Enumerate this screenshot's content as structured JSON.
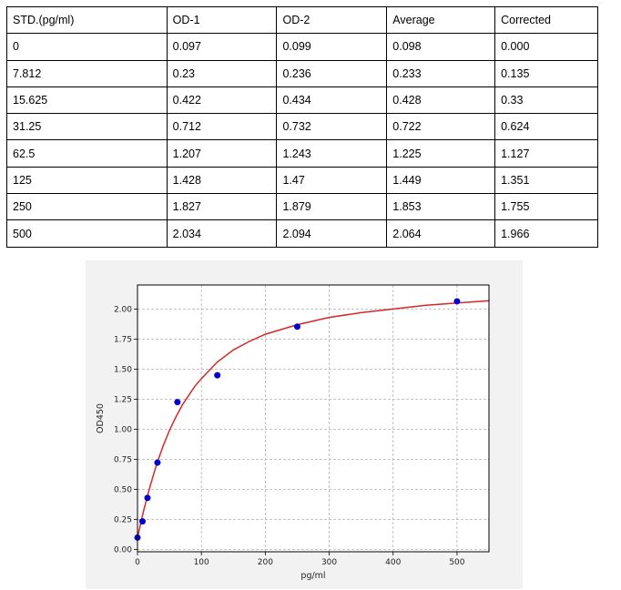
{
  "table": {
    "headers": [
      "STD.(pg/ml)",
      "OD-1",
      "OD-2",
      "Average",
      "Corrected"
    ],
    "rows": [
      [
        "0",
        "0.097",
        "0.099",
        "0.098",
        "0.000"
      ],
      [
        "7.812",
        "0.23",
        "0.236",
        "0.233",
        "0.135"
      ],
      [
        "15.625",
        "0.422",
        "0.434",
        "0.428",
        "0.33"
      ],
      [
        "31.25",
        "0.712",
        "0.732",
        "0.722",
        "0.624"
      ],
      [
        "62.5",
        "1.207",
        "1.243",
        "1.225",
        "1.127"
      ],
      [
        "125",
        "1.428",
        "1.47",
        "1.449",
        "1.351"
      ],
      [
        "250",
        "1.827",
        "1.879",
        "1.853",
        "1.755"
      ],
      [
        "500",
        "2.034",
        "2.094",
        "2.064",
        "1.966"
      ]
    ]
  },
  "chart_data": {
    "type": "scatter",
    "xlabel": "pg/ml",
    "ylabel": "OD450",
    "xlim": [
      0,
      550
    ],
    "ylim": [
      -0.02,
      2.2
    ],
    "xticks": [
      0,
      100,
      200,
      300,
      400,
      500
    ],
    "xtick_labels": [
      "0",
      "100",
      "200",
      "300",
      "400",
      "500"
    ],
    "yticks": [
      0.0,
      0.25,
      0.5,
      0.75,
      1.0,
      1.25,
      1.5,
      1.75,
      2.0
    ],
    "ytick_labels": [
      "0.00",
      "0.25",
      "0.50",
      "0.75",
      "1.00",
      "1.25",
      "1.50",
      "1.75",
      "2.00"
    ],
    "grid": true,
    "series": [
      {
        "kind": "points",
        "color": "#0000cc",
        "x": [
          0,
          7.812,
          15.625,
          31.25,
          62.5,
          125,
          250,
          500
        ],
        "y": [
          0.098,
          0.233,
          0.428,
          0.722,
          1.225,
          1.449,
          1.853,
          2.064
        ]
      },
      {
        "kind": "fit-curve",
        "color": "#d62728",
        "x": [
          0,
          10,
          20,
          30,
          40,
          50,
          60,
          70,
          80,
          90,
          100,
          125,
          150,
          175,
          200,
          250,
          300,
          350,
          400,
          450,
          500,
          550
        ],
        "y": [
          0.1,
          0.33,
          0.53,
          0.71,
          0.86,
          0.99,
          1.1,
          1.2,
          1.28,
          1.36,
          1.42,
          1.56,
          1.66,
          1.73,
          1.79,
          1.87,
          1.93,
          1.97,
          2.0,
          2.03,
          2.05,
          2.07
        ]
      }
    ]
  }
}
